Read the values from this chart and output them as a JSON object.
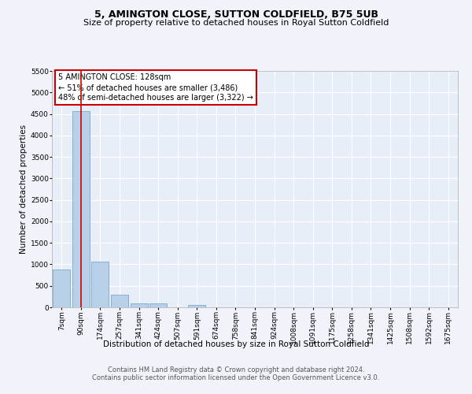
{
  "title": "5, AMINGTON CLOSE, SUTTON COLDFIELD, B75 5UB",
  "subtitle": "Size of property relative to detached houses in Royal Sutton Coldfield",
  "xlabel": "Distribution of detached houses by size in Royal Sutton Coldfield",
  "ylabel": "Number of detached properties",
  "bar_labels": [
    "7sqm",
    "90sqm",
    "174sqm",
    "257sqm",
    "341sqm",
    "424sqm",
    "507sqm",
    "591sqm",
    "674sqm",
    "758sqm",
    "841sqm",
    "924sqm",
    "1008sqm",
    "1091sqm",
    "1175sqm",
    "1258sqm",
    "1341sqm",
    "1425sqm",
    "1508sqm",
    "1592sqm",
    "1675sqm"
  ],
  "bar_values": [
    880,
    4560,
    1060,
    290,
    90,
    90,
    0,
    60,
    0,
    0,
    0,
    0,
    0,
    0,
    0,
    0,
    0,
    0,
    0,
    0,
    0
  ],
  "bar_color": "#b8d0e8",
  "bar_edge_color": "#7aaac8",
  "red_line_x": 1,
  "annotation_text": "5 AMINGTON CLOSE: 128sqm\n← 51% of detached houses are smaller (3,486)\n48% of semi-detached houses are larger (3,322) →",
  "annotation_box_color": "#ffffff",
  "annotation_box_edge": "#cc0000",
  "ylim": [
    0,
    5500
  ],
  "yticks": [
    0,
    500,
    1000,
    1500,
    2000,
    2500,
    3000,
    3500,
    4000,
    4500,
    5000,
    5500
  ],
  "footer1": "Contains HM Land Registry data © Crown copyright and database right 2024.",
  "footer2": "Contains public sector information licensed under the Open Government Licence v3.0.",
  "background_color": "#f0f4fa",
  "plot_background": "#e8eef8",
  "grid_color": "#ffffff",
  "title_fontsize": 9,
  "subtitle_fontsize": 8,
  "xlabel_fontsize": 7.5,
  "ylabel_fontsize": 7.5,
  "tick_fontsize": 6.5,
  "footer_fontsize": 6,
  "annot_fontsize": 7
}
